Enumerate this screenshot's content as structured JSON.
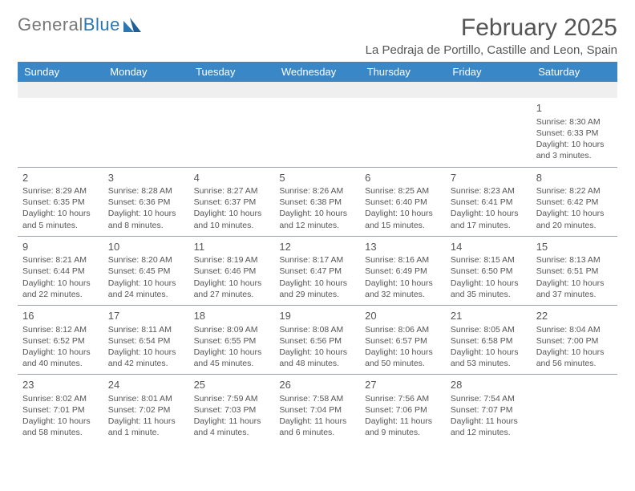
{
  "logo": {
    "text1": "General",
    "text2": "Blue"
  },
  "title": "February 2025",
  "subtitle": "La Pedraja de Portillo, Castille and Leon, Spain",
  "weekdays": [
    "Sunday",
    "Monday",
    "Tuesday",
    "Wednesday",
    "Thursday",
    "Friday",
    "Saturday"
  ],
  "colors": {
    "header_bg": "#3a87c7",
    "header_text": "#ffffff",
    "text": "#555555",
    "rule": "#9aa0a6",
    "logo_gray": "#777777",
    "logo_blue": "#2b77b5"
  },
  "rows": [
    [
      null,
      null,
      null,
      null,
      null,
      null,
      {
        "day": "1",
        "sunrise": "Sunrise: 8:30 AM",
        "sunset": "Sunset: 6:33 PM",
        "daylight1": "Daylight: 10 hours",
        "daylight2": "and 3 minutes."
      }
    ],
    [
      {
        "day": "2",
        "sunrise": "Sunrise: 8:29 AM",
        "sunset": "Sunset: 6:35 PM",
        "daylight1": "Daylight: 10 hours",
        "daylight2": "and 5 minutes."
      },
      {
        "day": "3",
        "sunrise": "Sunrise: 8:28 AM",
        "sunset": "Sunset: 6:36 PM",
        "daylight1": "Daylight: 10 hours",
        "daylight2": "and 8 minutes."
      },
      {
        "day": "4",
        "sunrise": "Sunrise: 8:27 AM",
        "sunset": "Sunset: 6:37 PM",
        "daylight1": "Daylight: 10 hours",
        "daylight2": "and 10 minutes."
      },
      {
        "day": "5",
        "sunrise": "Sunrise: 8:26 AM",
        "sunset": "Sunset: 6:38 PM",
        "daylight1": "Daylight: 10 hours",
        "daylight2": "and 12 minutes."
      },
      {
        "day": "6",
        "sunrise": "Sunrise: 8:25 AM",
        "sunset": "Sunset: 6:40 PM",
        "daylight1": "Daylight: 10 hours",
        "daylight2": "and 15 minutes."
      },
      {
        "day": "7",
        "sunrise": "Sunrise: 8:23 AM",
        "sunset": "Sunset: 6:41 PM",
        "daylight1": "Daylight: 10 hours",
        "daylight2": "and 17 minutes."
      },
      {
        "day": "8",
        "sunrise": "Sunrise: 8:22 AM",
        "sunset": "Sunset: 6:42 PM",
        "daylight1": "Daylight: 10 hours",
        "daylight2": "and 20 minutes."
      }
    ],
    [
      {
        "day": "9",
        "sunrise": "Sunrise: 8:21 AM",
        "sunset": "Sunset: 6:44 PM",
        "daylight1": "Daylight: 10 hours",
        "daylight2": "and 22 minutes."
      },
      {
        "day": "10",
        "sunrise": "Sunrise: 8:20 AM",
        "sunset": "Sunset: 6:45 PM",
        "daylight1": "Daylight: 10 hours",
        "daylight2": "and 24 minutes."
      },
      {
        "day": "11",
        "sunrise": "Sunrise: 8:19 AM",
        "sunset": "Sunset: 6:46 PM",
        "daylight1": "Daylight: 10 hours",
        "daylight2": "and 27 minutes."
      },
      {
        "day": "12",
        "sunrise": "Sunrise: 8:17 AM",
        "sunset": "Sunset: 6:47 PM",
        "daylight1": "Daylight: 10 hours",
        "daylight2": "and 29 minutes."
      },
      {
        "day": "13",
        "sunrise": "Sunrise: 8:16 AM",
        "sunset": "Sunset: 6:49 PM",
        "daylight1": "Daylight: 10 hours",
        "daylight2": "and 32 minutes."
      },
      {
        "day": "14",
        "sunrise": "Sunrise: 8:15 AM",
        "sunset": "Sunset: 6:50 PM",
        "daylight1": "Daylight: 10 hours",
        "daylight2": "and 35 minutes."
      },
      {
        "day": "15",
        "sunrise": "Sunrise: 8:13 AM",
        "sunset": "Sunset: 6:51 PM",
        "daylight1": "Daylight: 10 hours",
        "daylight2": "and 37 minutes."
      }
    ],
    [
      {
        "day": "16",
        "sunrise": "Sunrise: 8:12 AM",
        "sunset": "Sunset: 6:52 PM",
        "daylight1": "Daylight: 10 hours",
        "daylight2": "and 40 minutes."
      },
      {
        "day": "17",
        "sunrise": "Sunrise: 8:11 AM",
        "sunset": "Sunset: 6:54 PM",
        "daylight1": "Daylight: 10 hours",
        "daylight2": "and 42 minutes."
      },
      {
        "day": "18",
        "sunrise": "Sunrise: 8:09 AM",
        "sunset": "Sunset: 6:55 PM",
        "daylight1": "Daylight: 10 hours",
        "daylight2": "and 45 minutes."
      },
      {
        "day": "19",
        "sunrise": "Sunrise: 8:08 AM",
        "sunset": "Sunset: 6:56 PM",
        "daylight1": "Daylight: 10 hours",
        "daylight2": "and 48 minutes."
      },
      {
        "day": "20",
        "sunrise": "Sunrise: 8:06 AM",
        "sunset": "Sunset: 6:57 PM",
        "daylight1": "Daylight: 10 hours",
        "daylight2": "and 50 minutes."
      },
      {
        "day": "21",
        "sunrise": "Sunrise: 8:05 AM",
        "sunset": "Sunset: 6:58 PM",
        "daylight1": "Daylight: 10 hours",
        "daylight2": "and 53 minutes."
      },
      {
        "day": "22",
        "sunrise": "Sunrise: 8:04 AM",
        "sunset": "Sunset: 7:00 PM",
        "daylight1": "Daylight: 10 hours",
        "daylight2": "and 56 minutes."
      }
    ],
    [
      {
        "day": "23",
        "sunrise": "Sunrise: 8:02 AM",
        "sunset": "Sunset: 7:01 PM",
        "daylight1": "Daylight: 10 hours",
        "daylight2": "and 58 minutes."
      },
      {
        "day": "24",
        "sunrise": "Sunrise: 8:01 AM",
        "sunset": "Sunset: 7:02 PM",
        "daylight1": "Daylight: 11 hours",
        "daylight2": "and 1 minute."
      },
      {
        "day": "25",
        "sunrise": "Sunrise: 7:59 AM",
        "sunset": "Sunset: 7:03 PM",
        "daylight1": "Daylight: 11 hours",
        "daylight2": "and 4 minutes."
      },
      {
        "day": "26",
        "sunrise": "Sunrise: 7:58 AM",
        "sunset": "Sunset: 7:04 PM",
        "daylight1": "Daylight: 11 hours",
        "daylight2": "and 6 minutes."
      },
      {
        "day": "27",
        "sunrise": "Sunrise: 7:56 AM",
        "sunset": "Sunset: 7:06 PM",
        "daylight1": "Daylight: 11 hours",
        "daylight2": "and 9 minutes."
      },
      {
        "day": "28",
        "sunrise": "Sunrise: 7:54 AM",
        "sunset": "Sunset: 7:07 PM",
        "daylight1": "Daylight: 11 hours",
        "daylight2": "and 12 minutes."
      },
      null
    ]
  ]
}
